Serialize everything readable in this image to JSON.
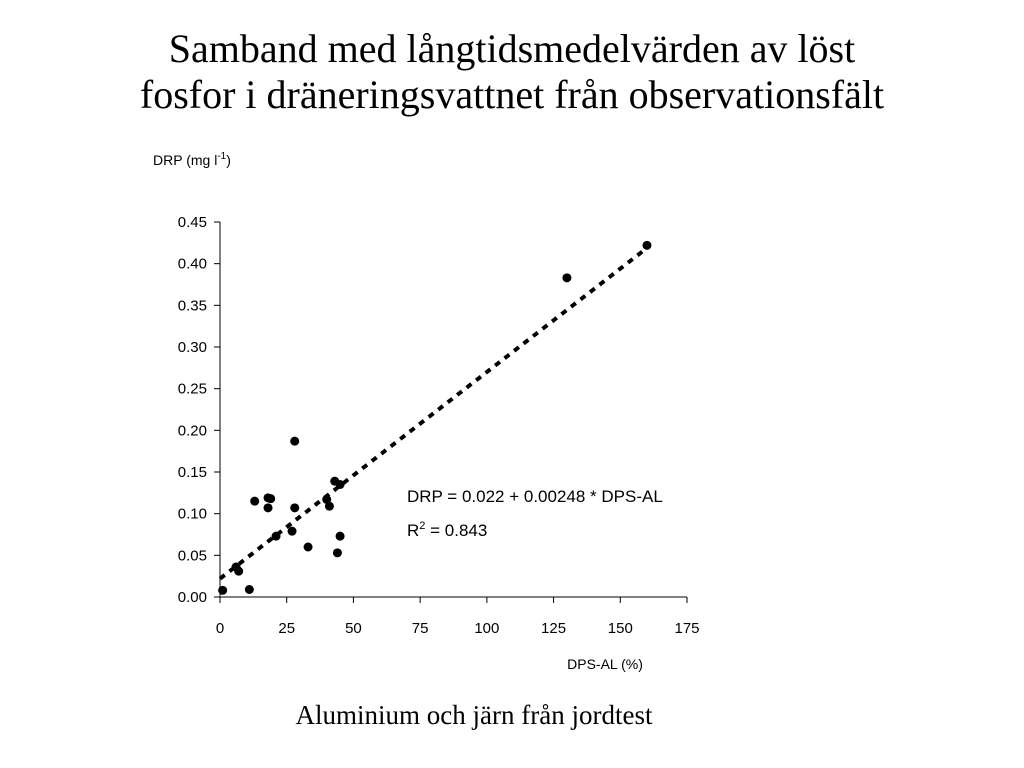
{
  "slide": {
    "title_line1": "Samband med långtidsmedelvärden av löst",
    "title_line2": "fosfor i dräneringsvattnet från observationsfält",
    "caption": "Aluminium och järn från jordtest"
  },
  "chart_data": {
    "type": "scatter",
    "title": "",
    "ylabel_main": "DRP (mg l",
    "ylabel_sup": "-1",
    "ylabel_end": ")",
    "xlabel": "DPS-AL (%)",
    "xlim": [
      0,
      175
    ],
    "ylim": [
      0,
      0.45
    ],
    "x_ticks": [
      "0",
      "25",
      "50",
      "75",
      "100",
      "125",
      "150",
      "175"
    ],
    "y_ticks": [
      "0.00",
      "0.05",
      "0.10",
      "0.15",
      "0.20",
      "0.25",
      "0.30",
      "0.35",
      "0.40",
      "0.45"
    ],
    "grid": false,
    "points": [
      {
        "x": 1,
        "y": 0.008
      },
      {
        "x": 6,
        "y": 0.036
      },
      {
        "x": 7,
        "y": 0.031
      },
      {
        "x": 11,
        "y": 0.009
      },
      {
        "x": 13,
        "y": 0.115
      },
      {
        "x": 18,
        "y": 0.107
      },
      {
        "x": 18,
        "y": 0.119
      },
      {
        "x": 19,
        "y": 0.118
      },
      {
        "x": 21,
        "y": 0.073
      },
      {
        "x": 27,
        "y": 0.079
      },
      {
        "x": 28,
        "y": 0.107
      },
      {
        "x": 28,
        "y": 0.187
      },
      {
        "x": 33,
        "y": 0.06
      },
      {
        "x": 40,
        "y": 0.117
      },
      {
        "x": 41,
        "y": 0.109
      },
      {
        "x": 43,
        "y": 0.139
      },
      {
        "x": 44,
        "y": 0.053
      },
      {
        "x": 45,
        "y": 0.073
      },
      {
        "x": 45,
        "y": 0.135
      },
      {
        "x": 130,
        "y": 0.383
      },
      {
        "x": 160,
        "y": 0.422
      }
    ],
    "regression": {
      "intercept": 0.022,
      "slope": 0.00248,
      "x_range": [
        0,
        160
      ],
      "style": "dashed",
      "equation": "DRP = 0.022 + 0.00248 * DPS-AL",
      "r2_prefix": "R",
      "r2_sup": "2",
      "r2_value": " = 0.843"
    }
  }
}
